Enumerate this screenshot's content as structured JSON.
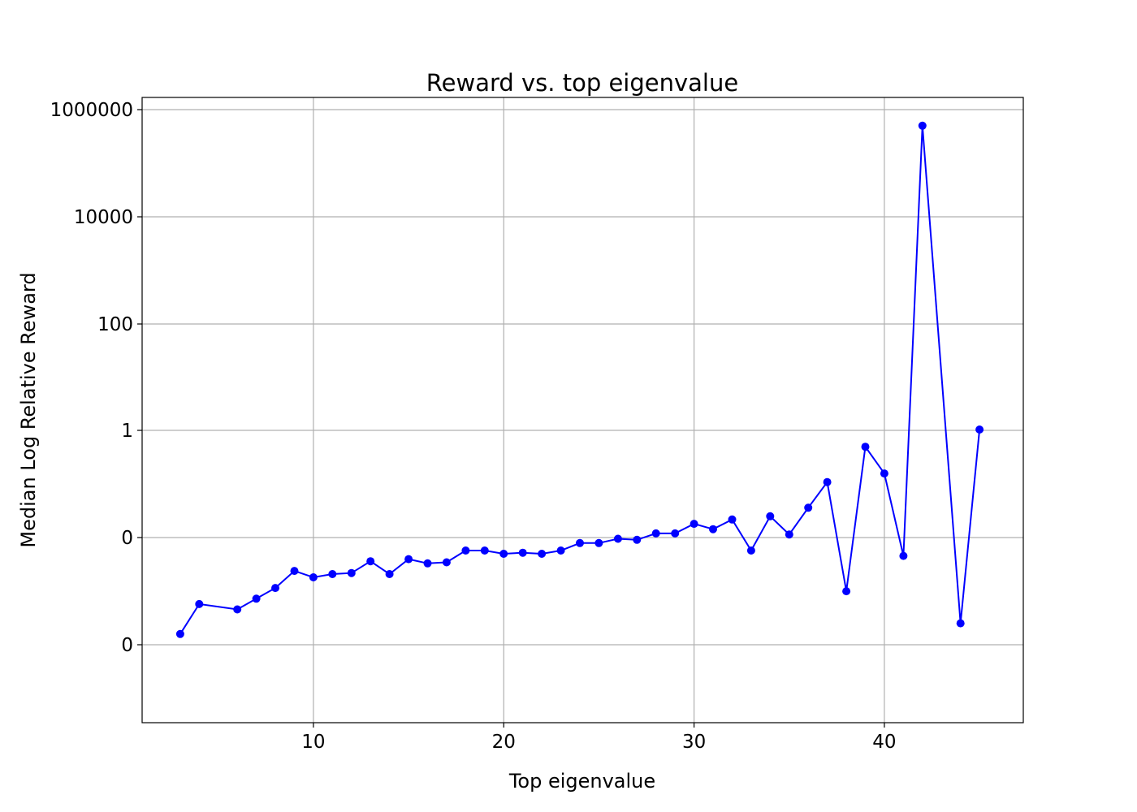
{
  "chart_data": {
    "type": "line",
    "title": "Reward vs. top eigenvalue",
    "xlabel": "Top eigenvalue",
    "ylabel": "Median Log Relative Reward",
    "xlim": [
      1,
      47.3
    ],
    "xticks": [
      10,
      20,
      30,
      40
    ],
    "y_scale": "symlog",
    "y_tick_labels": [
      "0",
      "0",
      "1",
      "100",
      "10000",
      "1000000"
    ],
    "grid": true,
    "series": [
      {
        "color": "#0000ff",
        "marker": "circle",
        "x": [
          3,
          4,
          6,
          7,
          8,
          9,
          10,
          11,
          12,
          13,
          14,
          15,
          16,
          17,
          18,
          19,
          20,
          21,
          22,
          23,
          24,
          25,
          26,
          27,
          28,
          29,
          30,
          31,
          32,
          33,
          34,
          35,
          36,
          37,
          38,
          39,
          40,
          41,
          42,
          44,
          45
        ],
        "y": [
          -0.9,
          -0.62,
          -0.67,
          -0.57,
          -0.47,
          -0.31,
          -0.37,
          -0.34,
          -0.33,
          -0.22,
          -0.34,
          -0.2,
          -0.24,
          -0.23,
          -0.12,
          -0.12,
          -0.15,
          -0.14,
          -0.15,
          -0.12,
          -0.05,
          -0.05,
          -0.01,
          -0.02,
          0.04,
          0.04,
          0.13,
          0.08,
          0.17,
          -0.12,
          0.2,
          0.03,
          0.28,
          0.52,
          -0.5,
          0.85,
          0.6,
          -0.17,
          500000,
          -0.8,
          1.05
        ]
      }
    ]
  }
}
